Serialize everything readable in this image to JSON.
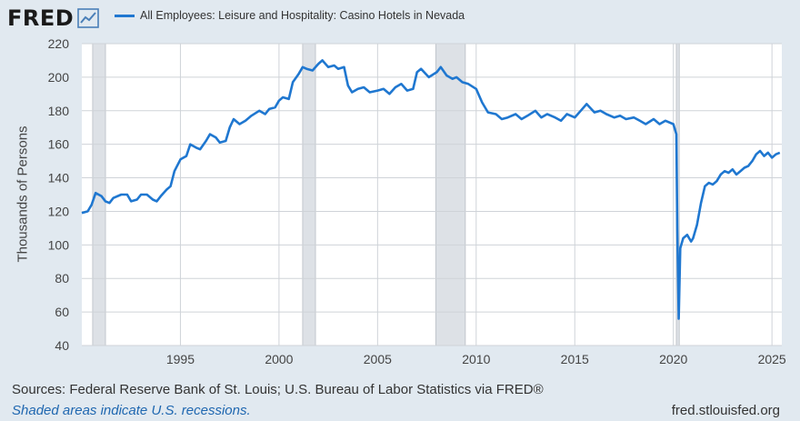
{
  "header": {
    "logo": "FRED",
    "logo_icon": "trend-chart-icon",
    "series_title": "All Employees: Leisure and Hospitality: Casino Hotels in Nevada"
  },
  "colors": {
    "line": "#1f77d0",
    "recession": "#dde1e6",
    "plot_bg": "#ffffff",
    "page_bg": "#e1e9f0",
    "grid": "#cfd3d8"
  },
  "footer": {
    "sources": "Sources: Federal Reserve Bank of St. Louis; U.S. Bureau of Labor Statistics via FRED®",
    "note": "Shaded areas indicate U.S. recessions.",
    "url": "fred.stlouisfed.org"
  },
  "chart_data": {
    "type": "line",
    "title": "All Employees: Leisure and Hospitality: Casino Hotels in Nevada",
    "xlabel": "",
    "ylabel": "Thousands of Persons",
    "xlim": [
      1990.0,
      2025.5
    ],
    "ylim": [
      40,
      220
    ],
    "yticks": [
      40,
      60,
      80,
      100,
      120,
      140,
      160,
      180,
      200,
      220
    ],
    "xticks": [
      1995,
      2000,
      2005,
      2010,
      2015,
      2020,
      2025
    ],
    "grid": true,
    "recessions": [
      [
        1990.55,
        1991.2
      ],
      [
        2001.2,
        2001.85
      ],
      [
        2007.95,
        2009.45
      ],
      [
        2020.15,
        2020.3
      ]
    ],
    "series": [
      {
        "name": "All Employees: Leisure and Hospitality: Casino Hotels in Nevada",
        "points": [
          [
            1990.0,
            119
          ],
          [
            1990.3,
            120
          ],
          [
            1990.5,
            124
          ],
          [
            1990.7,
            131
          ],
          [
            1991.0,
            129
          ],
          [
            1991.2,
            126
          ],
          [
            1991.4,
            125
          ],
          [
            1991.6,
            128
          ],
          [
            1992.0,
            130
          ],
          [
            1992.3,
            130
          ],
          [
            1992.5,
            126
          ],
          [
            1992.8,
            127
          ],
          [
            1993.0,
            130
          ],
          [
            1993.3,
            130
          ],
          [
            1993.6,
            127
          ],
          [
            1993.8,
            126
          ],
          [
            1994.0,
            129
          ],
          [
            1994.3,
            133
          ],
          [
            1994.5,
            135
          ],
          [
            1994.7,
            144
          ],
          [
            1995.0,
            151
          ],
          [
            1995.3,
            153
          ],
          [
            1995.5,
            160
          ],
          [
            1995.8,
            158
          ],
          [
            1996.0,
            157
          ],
          [
            1996.3,
            162
          ],
          [
            1996.5,
            166
          ],
          [
            1996.8,
            164
          ],
          [
            1997.0,
            161
          ],
          [
            1997.3,
            162
          ],
          [
            1997.5,
            170
          ],
          [
            1997.7,
            175
          ],
          [
            1998.0,
            172
          ],
          [
            1998.3,
            174
          ],
          [
            1998.6,
            177
          ],
          [
            1999.0,
            180
          ],
          [
            1999.3,
            178
          ],
          [
            1999.5,
            181
          ],
          [
            1999.8,
            182
          ],
          [
            2000.0,
            186
          ],
          [
            2000.2,
            188
          ],
          [
            2000.5,
            187
          ],
          [
            2000.7,
            197
          ],
          [
            2001.0,
            202
          ],
          [
            2001.2,
            206
          ],
          [
            2001.4,
            205
          ],
          [
            2001.7,
            204
          ],
          [
            2002.0,
            208
          ],
          [
            2002.2,
            210
          ],
          [
            2002.5,
            206
          ],
          [
            2002.8,
            207
          ],
          [
            2003.0,
            205
          ],
          [
            2003.3,
            206
          ],
          [
            2003.5,
            195
          ],
          [
            2003.7,
            191
          ],
          [
            2004.0,
            193
          ],
          [
            2004.3,
            194
          ],
          [
            2004.6,
            191
          ],
          [
            2005.0,
            192
          ],
          [
            2005.3,
            193
          ],
          [
            2005.6,
            190
          ],
          [
            2005.9,
            194
          ],
          [
            2006.2,
            196
          ],
          [
            2006.5,
            192
          ],
          [
            2006.8,
            193
          ],
          [
            2007.0,
            203
          ],
          [
            2007.2,
            205
          ],
          [
            2007.6,
            200
          ],
          [
            2008.0,
            203
          ],
          [
            2008.2,
            206
          ],
          [
            2008.5,
            201
          ],
          [
            2008.8,
            199
          ],
          [
            2009.0,
            200
          ],
          [
            2009.3,
            197
          ],
          [
            2009.6,
            196
          ],
          [
            2010.0,
            193
          ],
          [
            2010.3,
            185
          ],
          [
            2010.6,
            179
          ],
          [
            2011.0,
            178
          ],
          [
            2011.3,
            175
          ],
          [
            2011.6,
            176
          ],
          [
            2012.0,
            178
          ],
          [
            2012.3,
            175
          ],
          [
            2012.6,
            177
          ],
          [
            2013.0,
            180
          ],
          [
            2013.3,
            176
          ],
          [
            2013.6,
            178
          ],
          [
            2014.0,
            176
          ],
          [
            2014.3,
            174
          ],
          [
            2014.6,
            178
          ],
          [
            2015.0,
            176
          ],
          [
            2015.3,
            180
          ],
          [
            2015.6,
            184
          ],
          [
            2016.0,
            179
          ],
          [
            2016.3,
            180
          ],
          [
            2016.6,
            178
          ],
          [
            2017.0,
            176
          ],
          [
            2017.3,
            177
          ],
          [
            2017.6,
            175
          ],
          [
            2018.0,
            176
          ],
          [
            2018.3,
            174
          ],
          [
            2018.6,
            172
          ],
          [
            2019.0,
            175
          ],
          [
            2019.3,
            172
          ],
          [
            2019.6,
            174
          ],
          [
            2020.0,
            172
          ],
          [
            2020.1,
            168
          ],
          [
            2020.15,
            166
          ],
          [
            2020.2,
            110
          ],
          [
            2020.27,
            56
          ],
          [
            2020.35,
            98
          ],
          [
            2020.5,
            104
          ],
          [
            2020.7,
            106
          ],
          [
            2020.9,
            102
          ],
          [
            2021.0,
            104
          ],
          [
            2021.2,
            112
          ],
          [
            2021.4,
            125
          ],
          [
            2021.6,
            135
          ],
          [
            2021.8,
            137
          ],
          [
            2022.0,
            136
          ],
          [
            2022.2,
            138
          ],
          [
            2022.4,
            142
          ],
          [
            2022.6,
            144
          ],
          [
            2022.8,
            143
          ],
          [
            2023.0,
            145
          ],
          [
            2023.2,
            142
          ],
          [
            2023.4,
            144
          ],
          [
            2023.6,
            146
          ],
          [
            2023.8,
            147
          ],
          [
            2024.0,
            150
          ],
          [
            2024.2,
            154
          ],
          [
            2024.4,
            156
          ],
          [
            2024.6,
            153
          ],
          [
            2024.8,
            155
          ],
          [
            2025.0,
            152
          ],
          [
            2025.2,
            154
          ],
          [
            2025.4,
            155
          ]
        ]
      }
    ]
  }
}
